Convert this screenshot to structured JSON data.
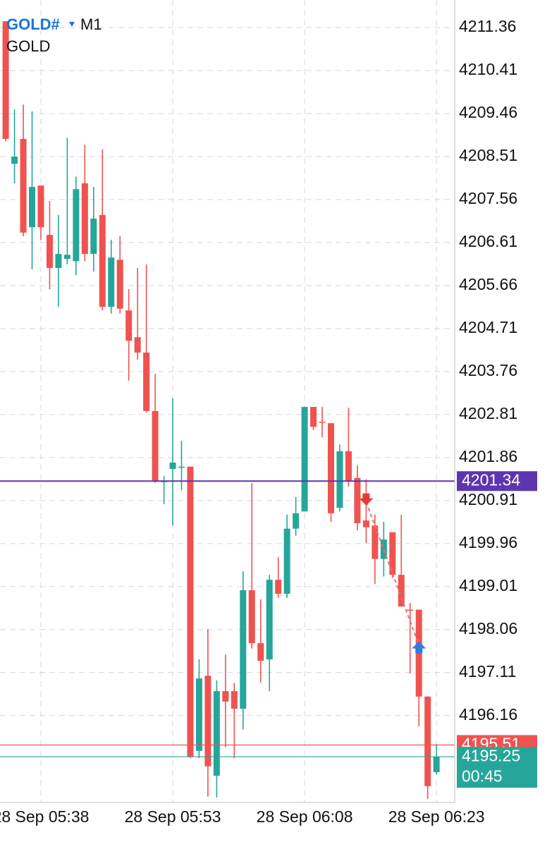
{
  "chart_data": {
    "type": "candlestick",
    "symbol": "GOLD#",
    "timeframe": "M1",
    "description": "GOLD",
    "countdown": "00:45",
    "categories": [
      null,
      null,
      null,
      null,
      "28 Sep 05:38",
      null,
      null,
      null,
      null,
      null,
      null,
      null,
      null,
      null,
      null,
      null,
      null,
      null,
      null,
      "28 Sep 05:53",
      null,
      null,
      null,
      null,
      null,
      null,
      null,
      null,
      null,
      null,
      null,
      null,
      null,
      null,
      "28 Sep 06:08",
      null,
      null,
      null,
      null,
      null,
      null,
      null,
      null,
      null,
      null,
      null,
      null,
      null,
      null,
      "28 Sep 06:23"
    ],
    "open": [
      4211.5,
      4208.35,
      4208.9,
      4206.95,
      4207.87,
      4206.78,
      4206.05,
      4206.25,
      4206.2,
      4207.92,
      4206.36,
      4207.22,
      4205.19,
      4206.23,
      4205.11,
      4204.52,
      4204.18,
      4202.89,
      4201.34,
      4201.61,
      4201.65,
      4201.66,
      4195.38,
      4197.04,
      4194.83,
      4196.7,
      4196.7,
      4196.31,
      4198.93,
      4197.76,
      4197.4,
      4199.16,
      4198.85,
      4200.29,
      4200.67,
      4202.98,
      4202.65,
      4202.62,
      4200.75,
      4202.0,
      4201.41,
      4200.47,
      4200.36,
      4199.62,
      4200.21,
      4199.27,
      4198.5,
      4198.5,
      4196.58,
      4194.91
    ],
    "high": [
      4211.5,
      4209.55,
      4209.66,
      4209.51,
      4207.87,
      4207.53,
      4207.22,
      4208.93,
      4208.07,
      4208.77,
      4207.84,
      4208.67,
      4206.67,
      4206.75,
      4205.58,
      4206.05,
      4206.13,
      4203.71,
      4201.45,
      4203.17,
      4202.23,
      4201.66,
      4197.4,
      4198.07,
      4196.94,
      4197.51,
      4196.88,
      4199.35,
      4201.3,
      4198.73,
      4199.27,
      4199.66,
      4200.6,
      4200.99,
      4202.98,
      4202.98,
      4202.98,
      4202.62,
      4202.15,
      4202.96,
      4201.69,
      4201.38,
      4200.6,
      4200.44,
      4200.21,
      4200.6,
      4198.65,
      4198.5,
      4196.58,
      4195.53
    ],
    "low": [
      4208.85,
      4207.92,
      4206.75,
      4206.02,
      4206.67,
      4205.58,
      4205.19,
      4206.13,
      4205.89,
      4206.2,
      4205.97,
      4205.11,
      4205.04,
      4205.04,
      4203.56,
      4204.02,
      4202.86,
      4201.3,
      4200.83,
      4200.36,
      4201.14,
      4195.22,
      4195.22,
      4194.37,
      4194.35,
      4195.46,
      4195.22,
      4195.85,
      4197.64,
      4196.89,
      4196.7,
      4198.76,
      4198.76,
      4200.13,
      4200.67,
      4202.47,
      4202.31,
      4200.44,
      4200.67,
      4201.22,
      4200.25,
      4199.97,
      4199.07,
      4199.23,
      4199.2,
      4198.57,
      4197.09,
      4195.92,
      4194.32,
      4194.86
    ],
    "close": [
      4208.9,
      4208.51,
      4206.83,
      4207.84,
      4206.95,
      4206.05,
      4206.36,
      4206.34,
      4207.79,
      4206.36,
      4207.14,
      4205.19,
      4206.28,
      4205.15,
      4204.44,
      4204.18,
      4202.89,
      4201.34,
      4201.34,
      4201.75,
      4201.66,
      4195.25,
      4196.98,
      4195.04,
      4196.7,
      4196.47,
      4196.31,
      4198.93,
      4197.76,
      4197.37,
      4199.16,
      4198.85,
      4200.29,
      4200.63,
      4202.98,
      4202.54,
      4202.63,
      4200.63,
      4202.0,
      4201.34,
      4200.41,
      4200.32,
      4199.62,
      4200.05,
      4199.27,
      4198.57,
      4198.48,
      4196.58,
      4194.6,
      4195.25
    ],
    "up_color": "#26a69a",
    "down_color": "#ef5350",
    "ylim": [
      4194.24,
      4211.97
    ],
    "yticks": [
      4211.36,
      4210.41,
      4209.46,
      4208.51,
      4207.56,
      4206.61,
      4205.66,
      4204.71,
      4203.76,
      4202.81,
      4201.86,
      4200.91,
      4199.96,
      4199.01,
      4198.06,
      4197.11,
      4196.16
    ],
    "grid": true,
    "price_lines": [
      {
        "value": 4201.34,
        "color": "#5e35b1"
      },
      {
        "value": 4195.51,
        "color": "#ef5350"
      },
      {
        "value": 4195.25,
        "color": "#26a69a"
      }
    ],
    "trades": [
      {
        "at": 41,
        "value": 4200.88,
        "direction": "down",
        "color": "#e53935"
      },
      {
        "at": 47,
        "value": 4197.72,
        "direction": "up",
        "color": "#2f7de1"
      }
    ]
  }
}
